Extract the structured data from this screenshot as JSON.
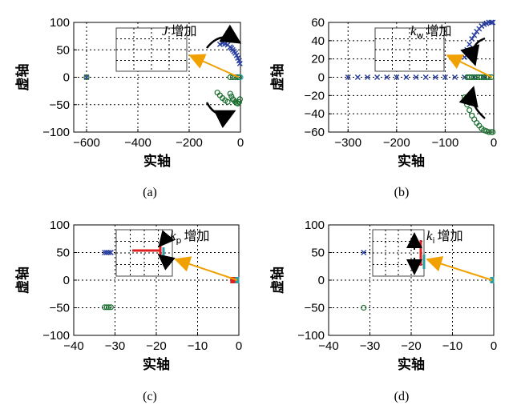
{
  "chart_data": [
    {
      "id": "a",
      "type": "scatter",
      "caption": "(a)",
      "xlabel": "实轴",
      "ylabel": "虚轴",
      "xlim": [
        -650,
        0
      ],
      "ylim": [
        -100,
        100
      ],
      "xticks": [
        -600,
        -400,
        -200,
        0
      ],
      "yticks": [
        -100,
        -50,
        0,
        50,
        100
      ],
      "annotation": {
        "symbol": "J",
        "text": "增加",
        "sub": ""
      },
      "series": [
        {
          "name": "upper-branch",
          "color": "#2a3fa0",
          "marker": "x",
          "points": [
            [
              -600,
              0
            ],
            [
              -40,
              55
            ],
            [
              -35,
              53
            ],
            [
              -30,
              50
            ],
            [
              -25,
              47
            ],
            [
              -20,
              44
            ],
            [
              -15,
              40
            ],
            [
              -10,
              35
            ],
            [
              -5,
              30
            ],
            [
              -2,
              25
            ],
            [
              -80,
              60
            ],
            [
              -70,
              62
            ],
            [
              -60,
              61
            ],
            [
              -50,
              59
            ]
          ]
        },
        {
          "name": "lower-branch",
          "color": "#1a6e2e",
          "marker": "o",
          "points": [
            [
              -600,
              0
            ],
            [
              -40,
              -30
            ],
            [
              -35,
              -35
            ],
            [
              -30,
              -40
            ],
            [
              -25,
              -42
            ],
            [
              -20,
              -45
            ],
            [
              -15,
              -47
            ],
            [
              -10,
              -48
            ],
            [
              -5,
              -45
            ],
            [
              -2,
              -40
            ],
            [
              -80,
              -33
            ],
            [
              -70,
              -38
            ],
            [
              -60,
              -42
            ],
            [
              -50,
              -45
            ],
            [
              -90,
              -28
            ]
          ]
        },
        {
          "name": "real-poles",
          "color": "#1a6e2e",
          "marker": "o",
          "points": [
            [
              -40,
              0
            ],
            [
              -30,
              0
            ],
            [
              -20,
              0
            ],
            [
              -10,
              0
            ],
            [
              -5,
              0
            ]
          ]
        },
        {
          "name": "origin",
          "color": "#2a9fa8",
          "marker": "o",
          "points": [
            [
              0,
              0
            ]
          ]
        }
      ]
    },
    {
      "id": "b",
      "type": "scatter",
      "caption": "(b)",
      "xlabel": "实轴",
      "ylabel": "虚轴",
      "xlim": [
        -340,
        0
      ],
      "ylim": [
        -60,
        60
      ],
      "xticks": [
        -300,
        -200,
        -100,
        0
      ],
      "yticks": [
        -60,
        -40,
        -20,
        0,
        20,
        40,
        60
      ],
      "annotation": {
        "symbol": "k",
        "text": "增加",
        "sub": "w"
      },
      "series": [
        {
          "name": "real-axis-blue",
          "color": "#2a3fa0",
          "marker": "x",
          "points": [
            [
              -300,
              0
            ],
            [
              -280,
              0
            ],
            [
              -260,
              0
            ],
            [
              -240,
              0
            ],
            [
              -220,
              0
            ],
            [
              -200,
              0
            ],
            [
              -180,
              0
            ],
            [
              -160,
              0
            ],
            [
              -140,
              0
            ],
            [
              -120,
              0
            ],
            [
              -100,
              0
            ],
            [
              -80,
              0
            ],
            [
              -60,
              0
            ],
            [
              -40,
              0
            ],
            [
              -20,
              0
            ]
          ]
        },
        {
          "name": "upper-branch",
          "color": "#2a3fa0",
          "marker": "x",
          "points": [
            [
              -60,
              22
            ],
            [
              -55,
              30
            ],
            [
              -50,
              36
            ],
            [
              -45,
              42
            ],
            [
              -40,
              46
            ],
            [
              -35,
              50
            ],
            [
              -30,
              53
            ],
            [
              -25,
              56
            ],
            [
              -20,
              58
            ],
            [
              -15,
              59
            ],
            [
              -10,
              60
            ],
            [
              -5,
              60
            ],
            [
              -2,
              60
            ]
          ]
        },
        {
          "name": "lower-branch",
          "color": "#1a6e2e",
          "marker": "o",
          "points": [
            [
              -60,
              -22
            ],
            [
              -55,
              -30
            ],
            [
              -50,
              -36
            ],
            [
              -45,
              -42
            ],
            [
              -40,
              -46
            ],
            [
              -35,
              -50
            ],
            [
              -30,
              -53
            ],
            [
              -25,
              -56
            ],
            [
              -20,
              -58
            ],
            [
              -15,
              -59
            ],
            [
              -10,
              -60
            ],
            [
              -5,
              -60
            ],
            [
              -2,
              -60
            ]
          ]
        },
        {
          "name": "real-axis-green",
          "color": "#1a6e2e",
          "marker": "o",
          "points": [
            [
              -55,
              0
            ],
            [
              -50,
              0
            ],
            [
              -45,
              0
            ],
            [
              -40,
              0
            ],
            [
              -35,
              0
            ],
            [
              -30,
              0
            ],
            [
              -25,
              0
            ],
            [
              -20,
              0
            ],
            [
              -15,
              0
            ],
            [
              -10,
              0
            ],
            [
              -5,
              0
            ]
          ]
        }
      ]
    },
    {
      "id": "c",
      "type": "scatter",
      "caption": "(c)",
      "xlabel": "实轴",
      "ylabel": "虚轴",
      "xlim": [
        -40,
        0
      ],
      "ylim": [
        -100,
        100
      ],
      "xticks": [
        -40,
        -30,
        -20,
        -10,
        0
      ],
      "yticks": [
        -100,
        -50,
        0,
        50,
        100
      ],
      "annotation": {
        "symbol": "k",
        "text": "增加",
        "sub": "p"
      },
      "series": [
        {
          "name": "upper-pole",
          "color": "#2a3fa0",
          "marker": "x",
          "points": [
            [
              -32.5,
              50
            ],
            [
              -32,
              50
            ],
            [
              -31.5,
              50
            ],
            [
              -31,
              50
            ]
          ]
        },
        {
          "name": "lower-pole",
          "color": "#1a6e2e",
          "marker": "o",
          "points": [
            [
              -32.5,
              -49
            ],
            [
              -32,
              -49
            ],
            [
              -31.5,
              -49
            ],
            [
              -31,
              -49
            ]
          ]
        },
        {
          "name": "red-poles",
          "color": "#e02020",
          "marker": "s",
          "points": [
            [
              -1.2,
              0
            ],
            [
              -1.5,
              0
            ]
          ]
        },
        {
          "name": "cyan-poles",
          "color": "#2a9fa8",
          "marker": "s",
          "points": [
            [
              -0.3,
              0
            ]
          ]
        }
      ]
    },
    {
      "id": "d",
      "type": "scatter",
      "caption": "(d)",
      "xlabel": "实轴",
      "ylabel": "虚轴",
      "xlim": [
        -40,
        0
      ],
      "ylim": [
        -100,
        100
      ],
      "xticks": [
        -40,
        -30,
        -20,
        -10,
        0
      ],
      "yticks": [
        -100,
        -50,
        0,
        50,
        100
      ],
      "annotation": {
        "symbol": "k",
        "text": "增加",
        "sub": "i"
      },
      "series": [
        {
          "name": "upper-pole",
          "color": "#2a3fa0",
          "marker": "x",
          "points": [
            [
              -31.5,
              50
            ]
          ]
        },
        {
          "name": "lower-pole",
          "color": "#1a6e2e",
          "marker": "o",
          "points": [
            [
              -31.5,
              -50
            ]
          ]
        },
        {
          "name": "cyan-poles",
          "color": "#2a9fa8",
          "marker": "s",
          "points": [
            [
              -0.3,
              0
            ]
          ]
        }
      ]
    }
  ]
}
